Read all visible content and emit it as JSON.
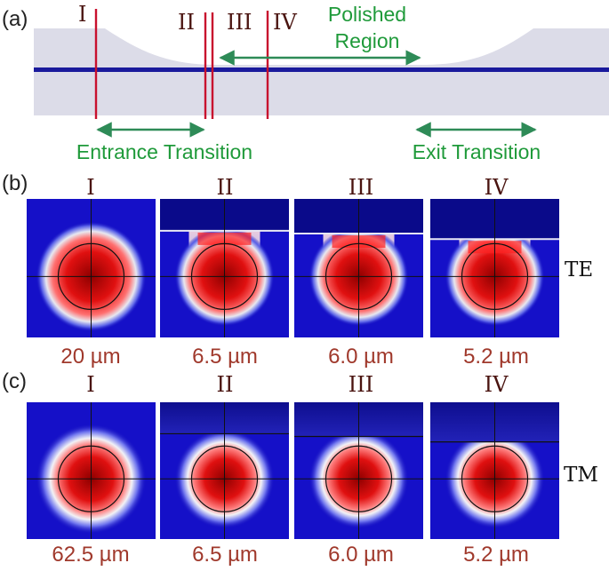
{
  "panel_a": {
    "label": "(a)",
    "line_labels": [
      "I",
      "II",
      "III",
      "IV"
    ],
    "polished_region": [
      "Polished",
      "Region"
    ],
    "entrance_transition": "Entrance Transition",
    "exit_transition": "Exit Transition"
  },
  "panel_b": {
    "label": "(b)",
    "column_titles": [
      "I",
      "II",
      "III",
      "IV"
    ],
    "mode_label": "TE",
    "values": [
      "20 µm",
      "6.5 µm",
      "6.0 µm",
      "5.2 µm"
    ],
    "interface_depths": [
      0,
      0.23,
      0.25,
      0.29
    ]
  },
  "panel_c": {
    "label": "(c)",
    "column_titles": [
      "I",
      "II",
      "III",
      "IV"
    ],
    "mode_label": "TM",
    "values": [
      "62.5 µm",
      "6.5 µm",
      "6.0 µm",
      "5.2 µm"
    ],
    "interface_depths": [
      0,
      0.23,
      0.25,
      0.29
    ]
  },
  "colors": {
    "line_red": "#c8102e",
    "arrow_green": "#2e8b57",
    "label_green": "#1f9a3a",
    "value_red": "#a0392c",
    "roman_dark": "#4a1410",
    "fiber_fill": "#d9d9e8",
    "core_blue": "#1a1a9c",
    "field_blue": "#0a0a8a",
    "field_red": "#d01010"
  }
}
